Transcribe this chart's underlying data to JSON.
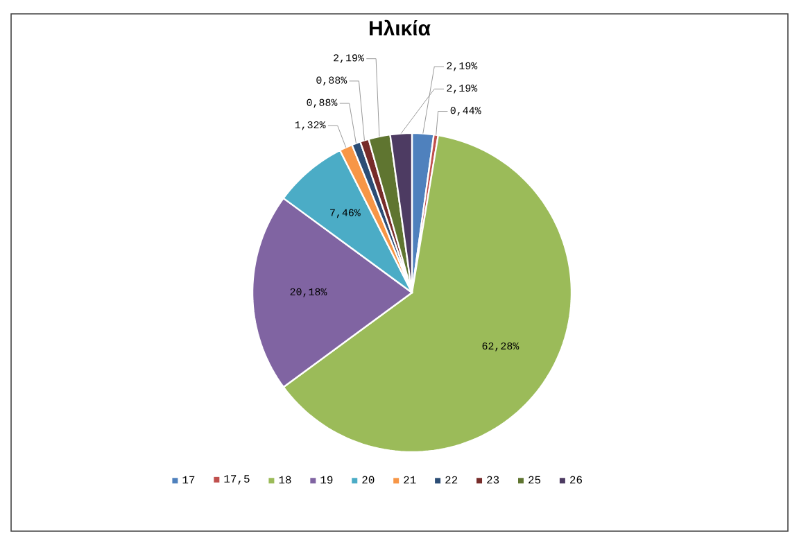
{
  "chart_data": {
    "type": "pie",
    "title": "Ηλικία",
    "categories": [
      "17",
      "17,5",
      "18",
      "19",
      "20",
      "21",
      "22",
      "23",
      "25",
      "26"
    ],
    "values": [
      2.19,
      0.44,
      62.28,
      20.18,
      7.46,
      1.32,
      0.88,
      0.88,
      2.19,
      2.19
    ],
    "value_labels": [
      "2,19%",
      "0,44%",
      "62,28%",
      "20,18%",
      "7,46%",
      "1,32%",
      "0,88%",
      "0,88%",
      "2,19%",
      "2,19%"
    ],
    "colors": [
      "#4f81bd",
      "#c0504d",
      "#9bbb59",
      "#8064a2",
      "#4bacc6",
      "#f79646",
      "#2c4d75",
      "#772c2a",
      "#5f7530",
      "#4d3b62"
    ],
    "legend": "bottom"
  }
}
